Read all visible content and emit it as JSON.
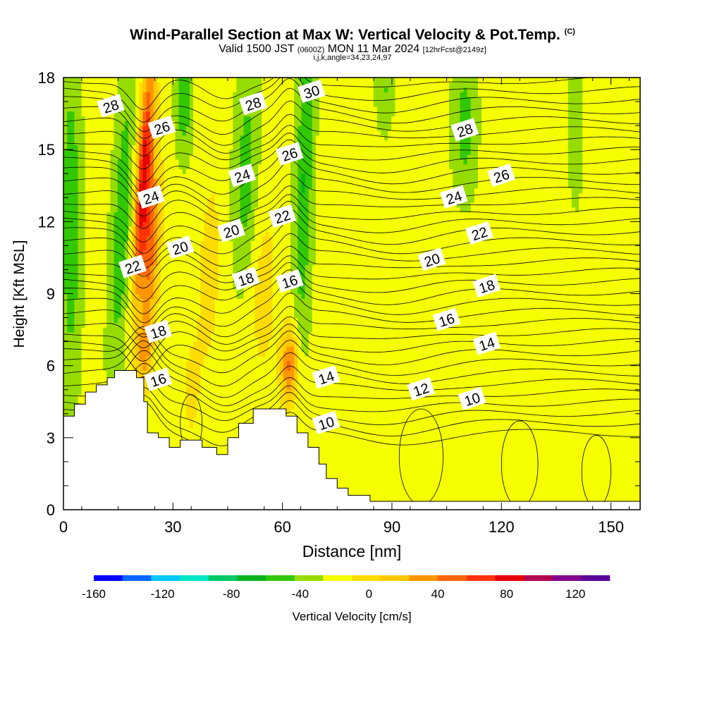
{
  "title": {
    "main": "Wind-Parallel Section at Max W: Vertical Velocity & Pot.Temp.",
    "main_suffix": "(C)",
    "valid_prefix": "Valid 1500 JST",
    "valid_utc": "(0600Z)",
    "valid_date": "MON 11 Mar 2024",
    "forecast": "[12hrFcst@2149z]",
    "indices": "i,j,k,angle=34,23,24,97"
  },
  "chart_data": {
    "type": "heatmap",
    "xlabel": "Distance [nm]",
    "ylabel": "Height [Kft MSL]",
    "xlim": [
      0,
      158
    ],
    "ylim": [
      0,
      18
    ],
    "x_ticks": [
      0,
      30,
      60,
      90,
      120,
      150
    ],
    "y_ticks": [
      0,
      3,
      6,
      9,
      12,
      15,
      18
    ],
    "shaded_field": "Vertical Velocity [cm/s]",
    "colorbar": {
      "label": "Vertical Velocity [cm/s]",
      "ticks": [
        -160,
        -120,
        -80,
        -40,
        0,
        40,
        80,
        120
      ],
      "range": [
        -160,
        140
      ],
      "step": 20,
      "colors": [
        "#0000ff",
        "#0066ff",
        "#00c8ff",
        "#00e6c8",
        "#00c864",
        "#00b41e",
        "#32c800",
        "#96dc00",
        "#f5ff00",
        "#ffdc00",
        "#ffc800",
        "#ff9600",
        "#ff6400",
        "#ff3200",
        "#e60000",
        "#b40050",
        "#82008c",
        "#5a009b"
      ]
    },
    "contour_field": "Potential Temperature (C)",
    "contour_levels": [
      10,
      12,
      14,
      16,
      18,
      20,
      22,
      24,
      26,
      28,
      30
    ],
    "contour_labels": [
      {
        "text": "28",
        "x": 13,
        "y": 16.8
      },
      {
        "text": "26",
        "x": 27,
        "y": 15.9
      },
      {
        "text": "24",
        "x": 24,
        "y": 13.0
      },
      {
        "text": "22",
        "x": 19,
        "y": 10.1
      },
      {
        "text": "20",
        "x": 32,
        "y": 10.9
      },
      {
        "text": "18",
        "x": 26,
        "y": 7.4
      },
      {
        "text": "16",
        "x": 26,
        "y": 5.4
      },
      {
        "text": "28",
        "x": 52,
        "y": 16.9
      },
      {
        "text": "30",
        "x": 68,
        "y": 17.4
      },
      {
        "text": "24",
        "x": 49,
        "y": 13.9
      },
      {
        "text": "26",
        "x": 62,
        "y": 14.8
      },
      {
        "text": "20",
        "x": 46,
        "y": 11.6
      },
      {
        "text": "22",
        "x": 60,
        "y": 12.2
      },
      {
        "text": "18",
        "x": 50,
        "y": 9.6
      },
      {
        "text": "16",
        "x": 62,
        "y": 9.5
      },
      {
        "text": "14",
        "x": 72,
        "y": 5.5
      },
      {
        "text": "10",
        "x": 72,
        "y": 3.6
      },
      {
        "text": "28",
        "x": 110,
        "y": 15.8
      },
      {
        "text": "26",
        "x": 120,
        "y": 13.9
      },
      {
        "text": "24",
        "x": 107,
        "y": 13.0
      },
      {
        "text": "22",
        "x": 114,
        "y": 11.5
      },
      {
        "text": "20",
        "x": 101,
        "y": 10.4
      },
      {
        "text": "18",
        "x": 116,
        "y": 9.3
      },
      {
        "text": "16",
        "x": 105,
        "y": 7.9
      },
      {
        "text": "14",
        "x": 116,
        "y": 6.9
      },
      {
        "text": "12",
        "x": 98,
        "y": 5.0
      },
      {
        "text": "10",
        "x": 112,
        "y": 4.6
      }
    ],
    "terrain_profile": [
      {
        "x": 0,
        "y": 3.9
      },
      {
        "x": 3,
        "y": 3.9
      },
      {
        "x": 3,
        "y": 4.4
      },
      {
        "x": 6,
        "y": 4.4
      },
      {
        "x": 6,
        "y": 4.9
      },
      {
        "x": 9,
        "y": 4.9
      },
      {
        "x": 9,
        "y": 5.2
      },
      {
        "x": 12,
        "y": 5.2
      },
      {
        "x": 12,
        "y": 5.5
      },
      {
        "x": 14,
        "y": 5.5
      },
      {
        "x": 14,
        "y": 5.8
      },
      {
        "x": 20,
        "y": 5.8
      },
      {
        "x": 20,
        "y": 5.5
      },
      {
        "x": 22,
        "y": 5.5
      },
      {
        "x": 22,
        "y": 4.5
      },
      {
        "x": 23,
        "y": 4.5
      },
      {
        "x": 23,
        "y": 3.2
      },
      {
        "x": 26,
        "y": 3.2
      },
      {
        "x": 26,
        "y": 3.0
      },
      {
        "x": 29,
        "y": 3.0
      },
      {
        "x": 29,
        "y": 2.6
      },
      {
        "x": 32,
        "y": 2.6
      },
      {
        "x": 32,
        "y": 2.9
      },
      {
        "x": 38,
        "y": 2.9
      },
      {
        "x": 38,
        "y": 2.6
      },
      {
        "x": 42,
        "y": 2.6
      },
      {
        "x": 42,
        "y": 2.3
      },
      {
        "x": 45,
        "y": 2.3
      },
      {
        "x": 45,
        "y": 3.0
      },
      {
        "x": 48,
        "y": 3.0
      },
      {
        "x": 48,
        "y": 3.6
      },
      {
        "x": 52,
        "y": 3.6
      },
      {
        "x": 52,
        "y": 4.2
      },
      {
        "x": 61,
        "y": 4.2
      },
      {
        "x": 61,
        "y": 3.9
      },
      {
        "x": 64,
        "y": 3.9
      },
      {
        "x": 64,
        "y": 3.2
      },
      {
        "x": 67,
        "y": 3.2
      },
      {
        "x": 67,
        "y": 2.6
      },
      {
        "x": 70,
        "y": 2.6
      },
      {
        "x": 70,
        "y": 1.9
      },
      {
        "x": 72,
        "y": 1.9
      },
      {
        "x": 72,
        "y": 1.3
      },
      {
        "x": 75,
        "y": 1.3
      },
      {
        "x": 75,
        "y": 0.9
      },
      {
        "x": 78,
        "y": 0.9
      },
      {
        "x": 78,
        "y": 0.6
      },
      {
        "x": 84,
        "y": 0.6
      },
      {
        "x": 84,
        "y": 0.35
      },
      {
        "x": 158,
        "y": 0.35
      }
    ]
  }
}
